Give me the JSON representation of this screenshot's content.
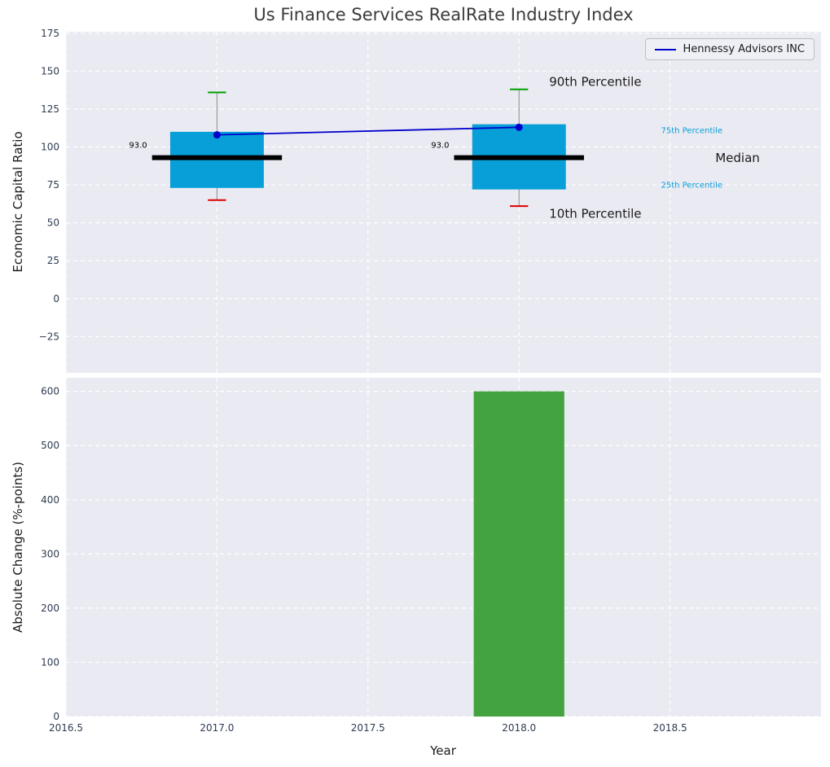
{
  "figure": {
    "background": "#ffffff",
    "axes_background": "#eaeaf2",
    "grid_color": "#ffffff",
    "tick_color": "#2e3b52",
    "text_color": "#1a1a1a",
    "title_color": "#3a3a3a"
  },
  "chart_data": [
    {
      "type": "boxplot",
      "title": "Us Finance Services RealRate Industry Index",
      "ylabel": "Economic Capital Ratio",
      "xlim": [
        2016.5,
        2019.0
      ],
      "ylim": [
        -49,
        176
      ],
      "yticks": [
        175,
        150,
        125,
        100,
        75,
        50,
        25,
        0,
        -25
      ],
      "grid": true,
      "legend": {
        "label": "Hennessy Advisors INC",
        "color": "#0000cc",
        "position": "upper right"
      },
      "box_color": "#089fd8",
      "median_color": "#000000",
      "whisker_color": "#8a8a8a",
      "p90_cap_color": "#00a000",
      "p10_cap_color": "#dd0000",
      "box_width_years": 0.31,
      "median_width_years": 0.43,
      "cap_width_years": 0.06,
      "boxes": [
        {
          "x": 2017,
          "p10": 65,
          "q1": 73,
          "median": 93,
          "q3": 110,
          "p90": 136,
          "median_label": "93.0"
        },
        {
          "x": 2018,
          "p10": 61,
          "q1": 72,
          "median": 93,
          "q3": 115,
          "p90": 138,
          "median_label": "93.0"
        }
      ],
      "line_series": {
        "name": "Hennessy Advisors INC",
        "color": "#0000cc",
        "points": [
          {
            "x": 2017,
            "y": 108
          },
          {
            "x": 2018,
            "y": 113
          }
        ]
      },
      "annotations": [
        {
          "text": "90th Percentile",
          "x": 2018.1,
          "y": 143,
          "color": "#1a1a1a",
          "size": 15
        },
        {
          "text": "10th Percentile",
          "x": 2018.1,
          "y": 56,
          "color": "#1a1a1a",
          "size": 15
        },
        {
          "text": "75th Percentile",
          "x": 2018.47,
          "y": 111,
          "color": "#089fd8",
          "size": 10
        },
        {
          "text": "Median",
          "x": 2018.65,
          "y": 93,
          "color": "#1a1a1a",
          "size": 15
        },
        {
          "text": "25th Percentile",
          "x": 2018.47,
          "y": 75,
          "color": "#089fd8",
          "size": 10
        }
      ]
    },
    {
      "type": "bar",
      "ylabel": "Absolute Change (%-points)",
      "xlabel": "Year",
      "xlim": [
        2016.5,
        2019.0
      ],
      "ylim": [
        0,
        625
      ],
      "yticks": [
        600,
        500,
        400,
        300,
        200,
        100,
        0
      ],
      "xticks": [
        2016.5,
        2017.0,
        2017.5,
        2018.0,
        2018.5
      ],
      "grid": true,
      "bar_color": "#43a340",
      "bar_width_years": 0.3,
      "bars": [
        {
          "x": 2018,
          "value": 600
        }
      ]
    }
  ]
}
